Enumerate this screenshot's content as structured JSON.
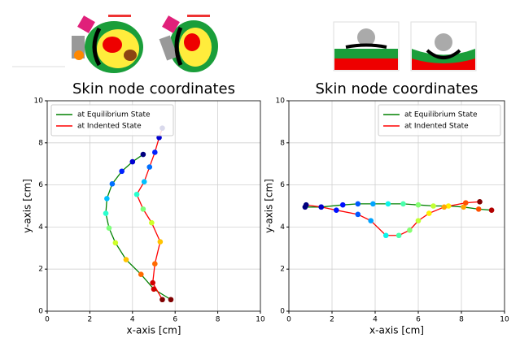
{
  "chart_data": [
    {
      "type": "line",
      "title": "Skin node coordinates",
      "x_label": "x-axis [cm]",
      "y_label": "y-axis [cm]",
      "xlim": [
        0,
        10
      ],
      "ylim": [
        0,
        10
      ],
      "xticks": [
        0,
        2,
        4,
        6,
        8,
        10
      ],
      "yticks": [
        0,
        2,
        4,
        6,
        8,
        10
      ],
      "grid": true,
      "legend": "upper-left",
      "series": [
        {
          "name": "at Equilibrium State",
          "color": "#008000",
          "x": [
            4.5,
            4.0,
            3.5,
            3.05,
            2.8,
            2.75,
            2.9,
            3.2,
            3.7,
            4.4,
            5.0,
            5.8
          ],
          "values": [
            7.45,
            7.1,
            6.65,
            6.05,
            5.35,
            4.65,
            3.95,
            3.25,
            2.45,
            1.75,
            1.05,
            0.55
          ],
          "marker_colors": [
            "#00007f",
            "#0000d1",
            "#0022ff",
            "#0070ff",
            "#00c0ff",
            "#29ffce",
            "#7dff7a",
            "#ceff29",
            "#ffc400",
            "#ff6a00",
            "#d10000",
            "#7f0000"
          ]
        },
        {
          "name": "at Indented State",
          "color": "#ff0000",
          "x": [
            5.4,
            5.25,
            5.05,
            4.8,
            4.55,
            4.2,
            4.5,
            4.9,
            5.3,
            5.05,
            4.95,
            5.4
          ],
          "values": [
            8.7,
            8.25,
            7.55,
            6.85,
            6.15,
            5.55,
            4.85,
            4.2,
            3.3,
            2.25,
            1.35,
            0.55
          ],
          "marker_colors": [
            "#00007f",
            "#0000d1",
            "#0022ff",
            "#0070ff",
            "#00c0ff",
            "#29ffce",
            "#7dff7a",
            "#ceff29",
            "#ffc400",
            "#ff6a00",
            "#d10000",
            "#7f0000"
          ]
        }
      ]
    },
    {
      "type": "line",
      "title": "Skin node coordinates",
      "x_label": "x-axis [cm]",
      "y_label": "y-axis [cm]",
      "xlim": [
        0,
        10
      ],
      "ylim": [
        0,
        10
      ],
      "xticks": [
        0,
        2,
        4,
        6,
        8,
        10
      ],
      "yticks": [
        0,
        2,
        4,
        6,
        8,
        10
      ],
      "grid": true,
      "legend": "upper-right",
      "series": [
        {
          "name": "at Equilibrium State",
          "color": "#008000",
          "x": [
            0.75,
            1.5,
            2.5,
            3.2,
            3.9,
            4.6,
            5.3,
            6.0,
            6.7,
            7.4,
            8.1,
            8.8,
            9.4
          ],
          "values": [
            4.95,
            4.95,
            5.05,
            5.1,
            5.1,
            5.1,
            5.1,
            5.05,
            5.0,
            5.0,
            4.95,
            4.85,
            4.8
          ],
          "marker_colors": [
            "#00007f",
            "#0000c8",
            "#0010ff",
            "#0058ff",
            "#00a4ff",
            "#0cf4eb",
            "#49ffad",
            "#86ff71",
            "#c3ff34",
            "#fff000",
            "#ffa400",
            "#ff5200",
            "#b20000"
          ]
        },
        {
          "name": "at Indented State",
          "color": "#ff0000",
          "x": [
            0.8,
            1.5,
            2.2,
            3.2,
            3.8,
            4.5,
            5.1,
            5.6,
            6.0,
            6.5,
            7.2,
            8.2,
            8.85
          ],
          "values": [
            5.05,
            4.95,
            4.8,
            4.6,
            4.3,
            3.6,
            3.6,
            3.85,
            4.3,
            4.65,
            4.95,
            5.15,
            5.2
          ],
          "marker_colors": [
            "#00007f",
            "#0000c8",
            "#0010ff",
            "#0058ff",
            "#00a4ff",
            "#0cf4eb",
            "#49ffad",
            "#86ff71",
            "#c3ff34",
            "#fff000",
            "#ffa400",
            "#ff5200",
            "#7f0000"
          ]
        }
      ]
    }
  ]
}
